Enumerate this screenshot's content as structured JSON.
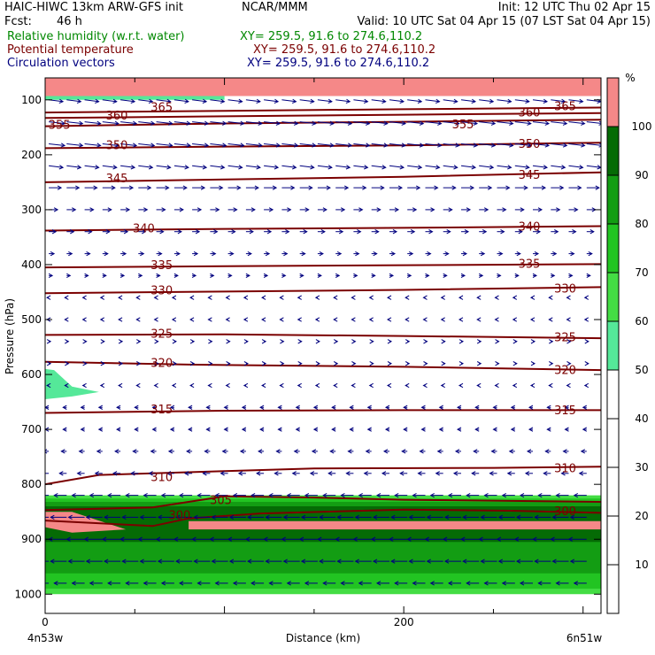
{
  "header": {
    "title": "HAIC-HIWC 13km ARW-GFS init",
    "org": "NCAR/MMM",
    "init": "Init: 12 UTC Thu 02 Apr 15",
    "fcst_label": "Fcst:",
    "fcst_value": "46 h",
    "valid": "Valid: 10 UTC Sat 04 Apr 15 (07 LST Sat 04 Apr 15)",
    "fields": [
      {
        "name": "Relative humidity (w.r.t. water)",
        "xy": "XY= 259.5, 91.6 to 274.6,110.2",
        "color": "#008800"
      },
      {
        "name": "Potential temperature",
        "xy": "XY= 259.5, 91.6 to 274.6,110.2",
        "color": "#7b0000"
      },
      {
        "name": "Circulation vectors",
        "xy": "XY= 259.5, 91.6 to 274.6,110.2",
        "color": "#00007f"
      }
    ]
  },
  "chart_data": {
    "type": "cross-section",
    "xlabel": "Distance (km)",
    "ylabel": "Pressure (hPa)",
    "x_ticks": [
      0,
      200
    ],
    "xlim": [
      0,
      310
    ],
    "y_ticks": [
      100,
      200,
      300,
      400,
      500,
      600,
      700,
      800,
      900,
      1000
    ],
    "ylim": [
      1035,
      60
    ],
    "left_endpoint": "4n53w",
    "right_endpoint": "6n51w",
    "colorbar": {
      "unit": "%",
      "ticks": [
        10,
        20,
        30,
        40,
        50,
        60,
        70,
        80,
        90,
        100
      ],
      "bins": [
        {
          "from": 50,
          "to": 60,
          "color": "#55e899"
        },
        {
          "from": 60,
          "to": 70,
          "color": "#44dd44"
        },
        {
          "from": 70,
          "to": 80,
          "color": "#22c422"
        },
        {
          "from": 80,
          "to": 90,
          "color": "#139d13"
        },
        {
          "from": 90,
          "to": 100,
          "color": "#056b05"
        },
        {
          "from": 100,
          "to": 110,
          "color": "#f58888"
        }
      ]
    },
    "theta_contours": [
      {
        "value": 300,
        "points": [
          [
            0,
            866
          ],
          [
            60,
            876
          ],
          [
            80,
            862
          ],
          [
            120,
            853
          ],
          [
            200,
            846
          ],
          [
            260,
            848
          ],
          [
            310,
            852
          ]
        ],
        "labels": [
          [
            75,
            855
          ],
          [
            290,
            848
          ]
        ]
      },
      {
        "value": 305,
        "points": [
          [
            0,
            847
          ],
          [
            60,
            842
          ],
          [
            100,
            822
          ],
          [
            150,
            824
          ],
          [
            200,
            828
          ],
          [
            310,
            832
          ]
        ],
        "labels": [
          [
            98,
            828
          ]
        ]
      },
      {
        "value": 310,
        "points": [
          [
            0,
            800
          ],
          [
            30,
            783
          ],
          [
            100,
            776
          ],
          [
            150,
            771
          ],
          [
            250,
            770
          ],
          [
            310,
            768
          ]
        ],
        "labels": [
          [
            65,
            786
          ],
          [
            290,
            770
          ]
        ]
      },
      {
        "value": 315,
        "points": [
          [
            0,
            670
          ],
          [
            100,
            666
          ],
          [
            200,
            665
          ],
          [
            310,
            665
          ]
        ],
        "labels": [
          [
            65,
            663
          ],
          [
            290,
            664
          ]
        ]
      },
      {
        "value": 320,
        "points": [
          [
            0,
            577
          ],
          [
            80,
            582
          ],
          [
            200,
            586
          ],
          [
            310,
            592
          ]
        ],
        "labels": [
          [
            65,
            578
          ],
          [
            290,
            591
          ]
        ]
      },
      {
        "value": 325,
        "points": [
          [
            0,
            528
          ],
          [
            100,
            527
          ],
          [
            200,
            530
          ],
          [
            310,
            534
          ]
        ],
        "labels": [
          [
            65,
            525
          ],
          [
            290,
            531
          ]
        ]
      },
      {
        "value": 330,
        "points": [
          [
            0,
            452
          ],
          [
            100,
            449
          ],
          [
            200,
            446
          ],
          [
            310,
            441
          ]
        ],
        "labels": [
          [
            65,
            446
          ],
          [
            290,
            443
          ]
        ]
      },
      {
        "value": 335,
        "points": [
          [
            0,
            405
          ],
          [
            100,
            403
          ],
          [
            200,
            401
          ],
          [
            310,
            399
          ]
        ],
        "labels": [
          [
            65,
            400
          ],
          [
            270,
            398
          ]
        ]
      },
      {
        "value": 340,
        "points": [
          [
            0,
            338
          ],
          [
            100,
            335
          ],
          [
            200,
            333
          ],
          [
            310,
            330
          ]
        ],
        "labels": [
          [
            55,
            333
          ],
          [
            270,
            330
          ]
        ]
      },
      {
        "value": 345,
        "points": [
          [
            0,
            250
          ],
          [
            100,
            245
          ],
          [
            200,
            240
          ],
          [
            310,
            232
          ]
        ],
        "labels": [
          [
            40,
            242
          ],
          [
            270,
            236
          ]
        ]
      },
      {
        "value": 350,
        "points": [
          [
            0,
            188
          ],
          [
            100,
            185
          ],
          [
            200,
            183
          ],
          [
            310,
            178
          ]
        ],
        "labels": [
          [
            40,
            182
          ],
          [
            270,
            179
          ]
        ]
      },
      {
        "value": 355,
        "points": [
          [
            0,
            148
          ],
          [
            100,
            143
          ],
          [
            200,
            140
          ],
          [
            310,
            136
          ]
        ],
        "labels": [
          [
            8,
            145
          ],
          [
            233,
            144
          ]
        ]
      },
      {
        "value": 360,
        "points": [
          [
            0,
            133
          ],
          [
            100,
            130
          ],
          [
            200,
            127
          ],
          [
            310,
            124
          ]
        ],
        "labels": [
          [
            40,
            128
          ],
          [
            270,
            122
          ]
        ]
      },
      {
        "value": 365,
        "points": [
          [
            0,
            123
          ],
          [
            100,
            120
          ],
          [
            200,
            117
          ],
          [
            310,
            114
          ]
        ],
        "labels": [
          [
            65,
            112
          ],
          [
            290,
            111
          ]
        ]
      }
    ],
    "rh_regions": [
      {
        "bin": 100,
        "polygon": [
          [
            0,
            60
          ],
          [
            310,
            60
          ],
          [
            310,
            93
          ],
          [
            0,
            93
          ]
        ]
      },
      {
        "bin": 50,
        "polygon": [
          [
            0,
            93
          ],
          [
            100,
            93
          ],
          [
            100,
            100
          ],
          [
            0,
            100
          ]
        ]
      },
      {
        "bin": 50,
        "polygon": [
          [
            0,
            590
          ],
          [
            5,
            592
          ],
          [
            15,
            622
          ],
          [
            30,
            632
          ],
          [
            15,
            640
          ],
          [
            0,
            645
          ]
        ]
      },
      {
        "bin": 60,
        "polygon": [
          [
            0,
            820
          ],
          [
            310,
            820
          ],
          [
            310,
            1000
          ],
          [
            0,
            1000
          ]
        ]
      },
      {
        "bin": 70,
        "polygon": [
          [
            0,
            826
          ],
          [
            310,
            826
          ],
          [
            310,
            990
          ],
          [
            0,
            990
          ]
        ]
      },
      {
        "bin": 80,
        "polygon": [
          [
            0,
            832
          ],
          [
            310,
            832
          ],
          [
            310,
            962
          ],
          [
            0,
            962
          ]
        ]
      },
      {
        "bin": 90,
        "polygon": [
          [
            0,
            840
          ],
          [
            310,
            840
          ],
          [
            310,
            905
          ],
          [
            0,
            905
          ]
        ]
      },
      {
        "bin": 100,
        "polygon": [
          [
            0,
            850
          ],
          [
            15,
            850
          ],
          [
            45,
            882
          ],
          [
            15,
            888
          ],
          [
            0,
            878
          ]
        ]
      },
      {
        "bin": 100,
        "polygon": [
          [
            80,
            867
          ],
          [
            310,
            867
          ],
          [
            310,
            882
          ],
          [
            80,
            882
          ]
        ]
      }
    ],
    "vectors": {
      "levels": [
        100,
        140,
        180,
        220,
        260,
        300,
        340,
        380,
        420,
        460,
        500,
        540,
        580,
        620,
        660,
        700,
        740,
        780,
        820,
        860,
        900,
        940,
        980
      ],
      "x_step": 10,
      "u": [
        8,
        9,
        9,
        8,
        7,
        5,
        4,
        3,
        2,
        -1,
        -1,
        1,
        1,
        -1,
        -2,
        -2,
        -3,
        -4,
        -7,
        -9,
        -10,
        -9,
        -7
      ],
      "v": [
        -1,
        -1,
        -1,
        -1,
        0,
        0,
        0,
        0,
        0,
        0,
        0,
        0,
        0,
        0,
        0,
        0,
        0,
        0,
        0,
        0,
        0,
        0,
        0
      ],
      "color": "#00007f"
    }
  }
}
